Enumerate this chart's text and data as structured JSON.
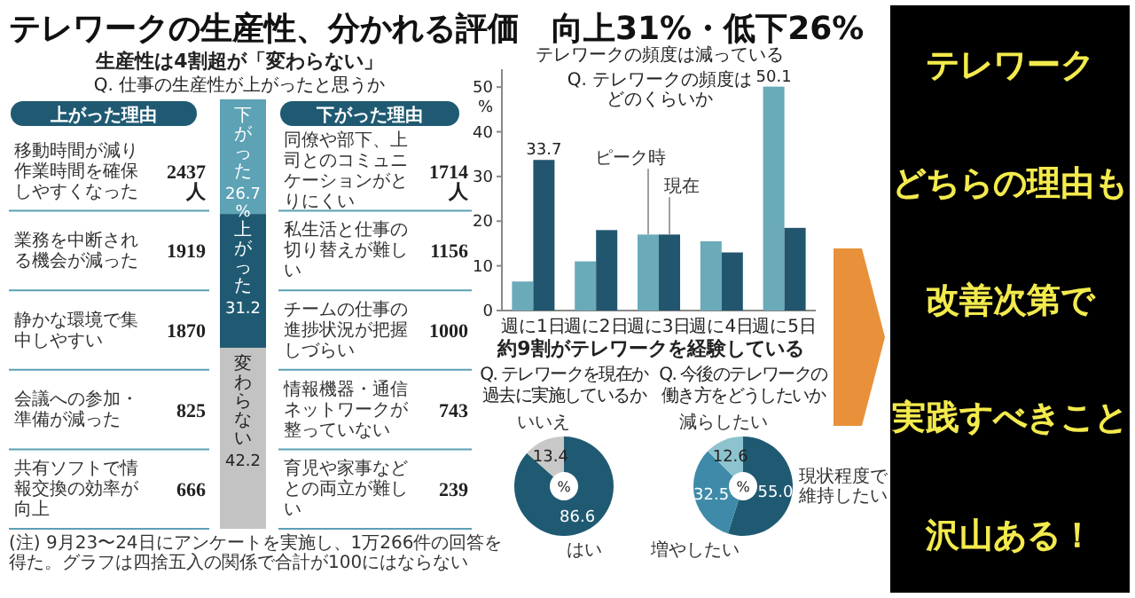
{
  "chart_data": [
    {
      "type": "other",
      "title": "テレワークの生産性、分かれる評価　向上31%・低下26%",
      "subtitle": "生産性は4割超が「変わらない」",
      "annotations": [
        "Q. 仕事の生産性が上がったと思うか",
        "(注) 9月23〜24日にアンケートを実施し、1万266件の回答を得た。グラフは四捨五入の関係で合計が100にはならない"
      ]
    },
    {
      "type": "other",
      "title": "上がった理由",
      "categories": [
        "移動時間が減り作業時間を確保しやすくなった",
        "業務を中断される機会が減った",
        "静かな環境で集中しやすい",
        "会議への参加・準備が減った",
        "共有ソフトで情報交換の効率が向上"
      ],
      "values": [
        2437,
        1919,
        1870,
        825,
        666
      ],
      "value_labels": [
        "2437人",
        "1919",
        "1870",
        "825",
        "666"
      ]
    },
    {
      "type": "bar",
      "stacked": true,
      "categories": [
        null
      ],
      "series": [
        {
          "name": "変わらない",
          "color": "#c3c3c3",
          "values": [
            42.2
          ],
          "value_labels": [
            "42.2"
          ]
        },
        {
          "name": "上がった",
          "color": "#1f5a72",
          "values": [
            31.2
          ],
          "value_labels": [
            "31.2"
          ]
        },
        {
          "name": "下がった",
          "color": "#5da2b5",
          "values": [
            26.7
          ],
          "value_labels": [
            "26.7%"
          ]
        }
      ]
    },
    {
      "type": "other",
      "title": "下がった理由",
      "categories": [
        "同僚や部下、上司とのコミュニケーションがとりにくい",
        "私生活と仕事の切り替えが難しい",
        "チームの仕事の進捗状況が把握しづらい",
        "情報機器・通信ネットワークが整っていない",
        "育児や家事などとの両立が難しい"
      ],
      "values": [
        1714,
        1156,
        1000,
        743,
        239
      ],
      "value_labels": [
        "1714人",
        "1156",
        "1000",
        "743",
        "239"
      ]
    },
    {
      "type": "bar",
      "title": "テレワークの頻度は減っている",
      "subtitle": "Q. テレワークの頻度はどのくらいか",
      "ylabel": "%",
      "categories": [
        "週に1日",
        "週に2日",
        "週に3日",
        "週に4日",
        "週に5日"
      ],
      "ylim": [
        0,
        54
      ],
      "yticks": [
        0,
        10,
        20,
        30,
        40,
        50
      ],
      "series": [
        {
          "name": "ピーク時",
          "color": "#6aaab9",
          "values": [
            6.5,
            11,
            17,
            15.5,
            50.1
          ],
          "value_labels": [
            null,
            null,
            null,
            null,
            "50.1"
          ]
        },
        {
          "name": "現在",
          "color": "#21566e",
          "values": [
            33.7,
            18,
            17,
            13,
            18.5
          ],
          "value_labels": [
            "33.7",
            null,
            null,
            null,
            null
          ]
        }
      ]
    },
    {
      "type": "donut",
      "title": "約9割がテレワークを経験している",
      "subtitle": "Q. テレワークを現在か過去に実施しているか",
      "categories": [
        "はい",
        "いいえ"
      ],
      "values": [
        86.6,
        13.4
      ],
      "colors": [
        "#1f5a72",
        "#c8c8c8"
      ],
      "data_labels": true,
      "annotations": [
        "%"
      ]
    },
    {
      "type": "donut",
      "subtitle": "Q. 今後のテレワークの働き方をどうしたいか",
      "categories": [
        "現状程度で維持したい",
        "増やしたい",
        "減らしたい"
      ],
      "values": [
        55.0,
        32.5,
        12.6
      ],
      "value_labels": [
        "55.0",
        "32.5",
        "12.6"
      ],
      "colors": [
        "#1f5a72",
        "#3e8aa8",
        "#8dc3cf"
      ],
      "annotations": [
        "%"
      ]
    },
    {
      "type": "other",
      "annotations": [
        "テレワーク",
        "どちらの理由も",
        "改善次第で",
        "実践すべきこと",
        "沢山ある！"
      ]
    }
  ]
}
